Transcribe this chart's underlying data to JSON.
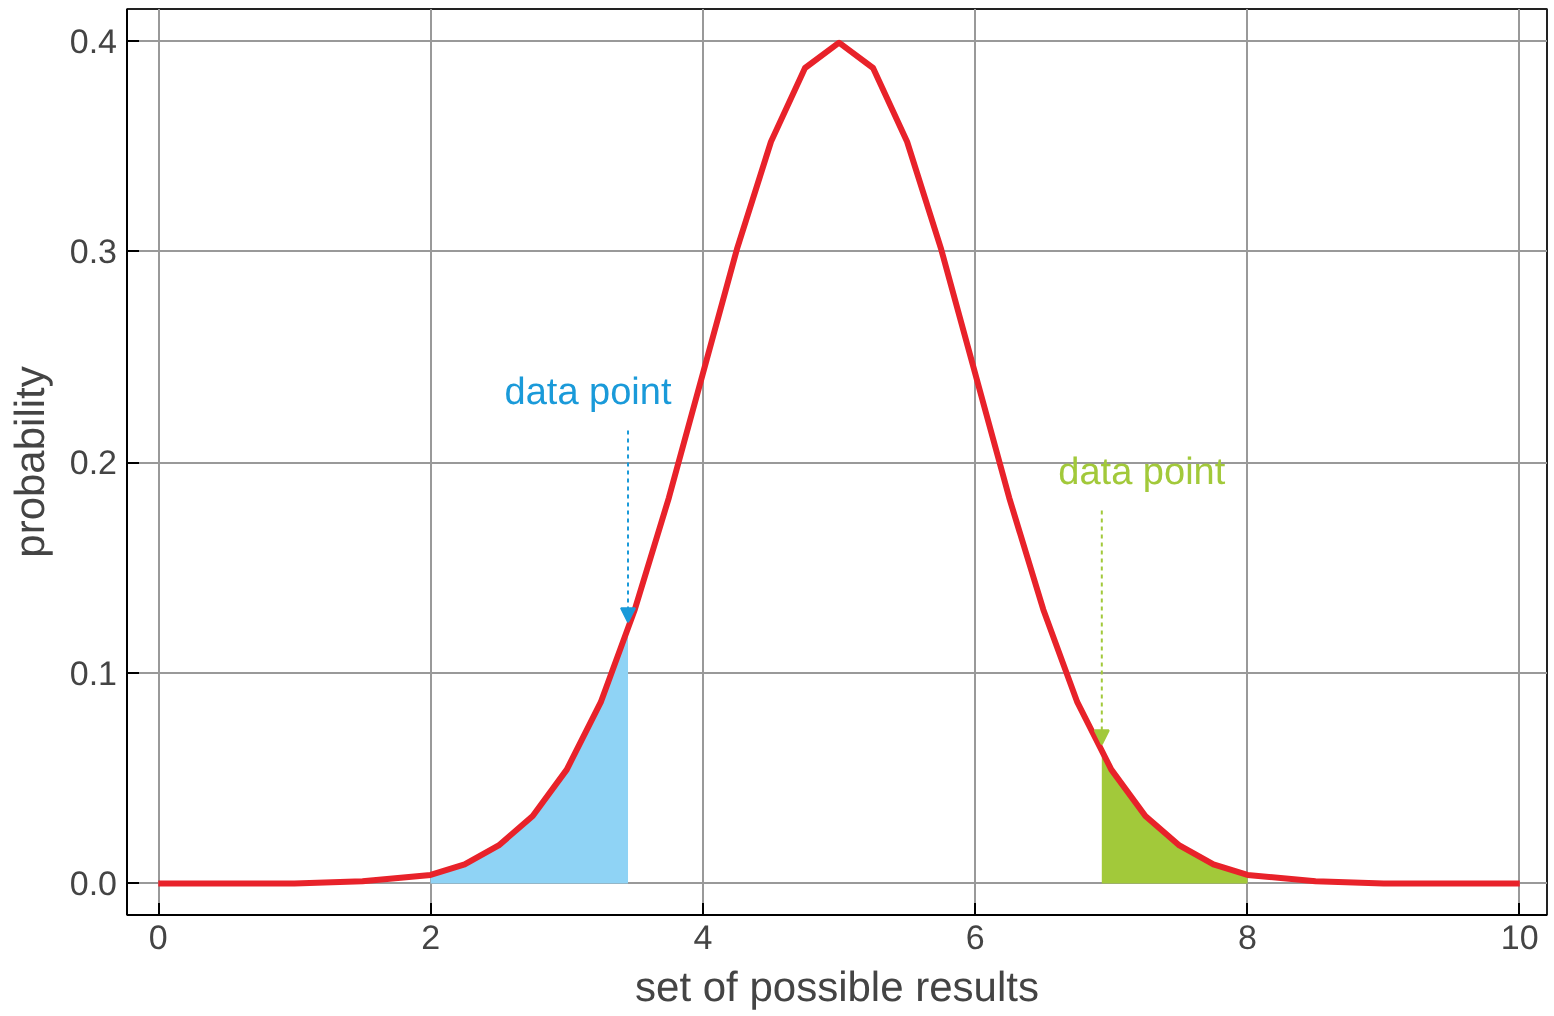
{
  "chart_data": {
    "type": "line",
    "xlabel": "set of possible results",
    "ylabel": "probability",
    "xlim": [
      -0.23,
      10.2
    ],
    "ylim": [
      -0.015,
      0.415
    ],
    "xticks": [
      0,
      2,
      4,
      6,
      8,
      10
    ],
    "yticks": [
      {
        "value": 0,
        "label": "0.0"
      },
      {
        "value": 0.1,
        "label": "0.1"
      },
      {
        "value": 0.2,
        "label": "0.2"
      },
      {
        "value": 0.3,
        "label": "0.3"
      },
      {
        "value": 0.4,
        "label": "0.4"
      }
    ],
    "grid": true,
    "series": [
      {
        "type": "area",
        "color": "#8fd3f5",
        "x": [
          2,
          2.25,
          2.5,
          2.75,
          3,
          3.25,
          3.45
        ],
        "values": [
          0.004,
          0.009,
          0.018,
          0.032,
          0.054,
          0.086,
          0.12
        ]
      },
      {
        "type": "area",
        "color": "#a2c93a",
        "x": [
          6.93,
          7,
          7.25,
          7.5,
          7.75,
          8
        ],
        "values": [
          0.062,
          0.054,
          0.032,
          0.018,
          0.009,
          0.004
        ]
      },
      {
        "color": "#e8222a",
        "x": [
          0,
          0.5,
          1,
          1.5,
          2,
          2.25,
          2.5,
          2.75,
          3,
          3.25,
          3.5,
          3.75,
          4,
          4.25,
          4.5,
          4.75,
          5,
          5.25,
          5.5,
          5.75,
          6,
          6.25,
          6.5,
          6.75,
          7,
          7.25,
          7.5,
          7.75,
          8,
          8.5,
          9,
          9.5,
          10
        ],
        "values": [
          0,
          0,
          0,
          0.001,
          0.004,
          0.009,
          0.018,
          0.032,
          0.054,
          0.086,
          0.13,
          0.183,
          0.242,
          0.301,
          0.352,
          0.387,
          0.399,
          0.387,
          0.352,
          0.301,
          0.242,
          0.183,
          0.13,
          0.086,
          0.054,
          0.032,
          0.018,
          0.009,
          0.004,
          0.001,
          0,
          0,
          0
        ]
      }
    ],
    "annotations": [
      {
        "text": "data point",
        "x": 3.45,
        "y": 0.12
      },
      {
        "text": "data point",
        "x": 6.93,
        "y": 0.062
      }
    ]
  }
}
